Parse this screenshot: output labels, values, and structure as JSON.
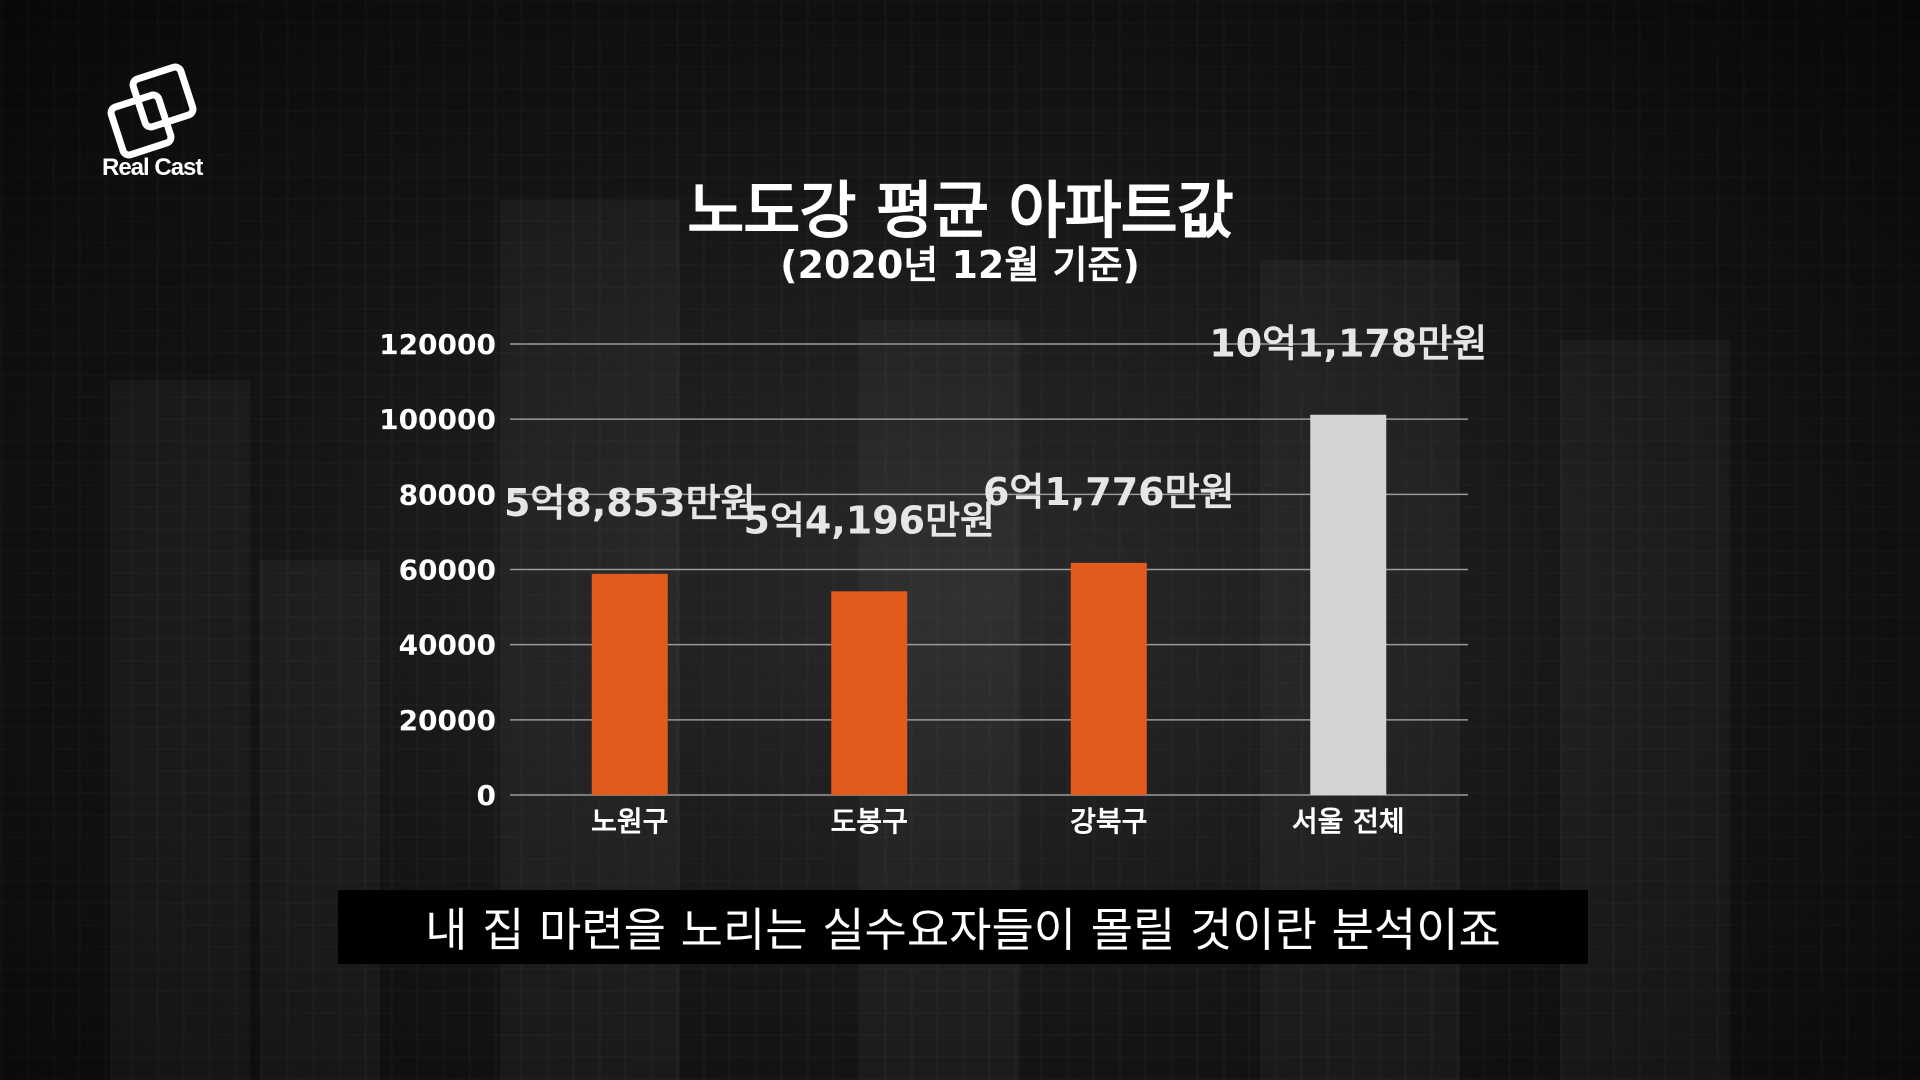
{
  "brand": {
    "logo_text": "Real Cast"
  },
  "caption": {
    "text": "내 집 마련을 노리는 실수요자들이 몰릴 것이란 분석이죠"
  },
  "chart_data": {
    "type": "bar",
    "title": "노도강 평균 아파트값",
    "subtitle": "(2020년 12월 기준)",
    "categories": [
      "노원구",
      "도봉구",
      "강북구",
      "서울 전체"
    ],
    "values": [
      58853,
      54196,
      61776,
      101178
    ],
    "data_labels": [
      "5억8,853만원",
      "5억4,196만원",
      "6억1,776만원",
      "10억1,178만원"
    ],
    "colors": [
      "#e25a1c",
      "#e25a1c",
      "#e25a1c",
      "#d4d4d4"
    ],
    "yticks": [
      0,
      20000,
      40000,
      60000,
      80000,
      100000,
      120000
    ],
    "ylim": [
      0,
      120000
    ],
    "grid": true,
    "xlabel": "",
    "ylabel": ""
  }
}
